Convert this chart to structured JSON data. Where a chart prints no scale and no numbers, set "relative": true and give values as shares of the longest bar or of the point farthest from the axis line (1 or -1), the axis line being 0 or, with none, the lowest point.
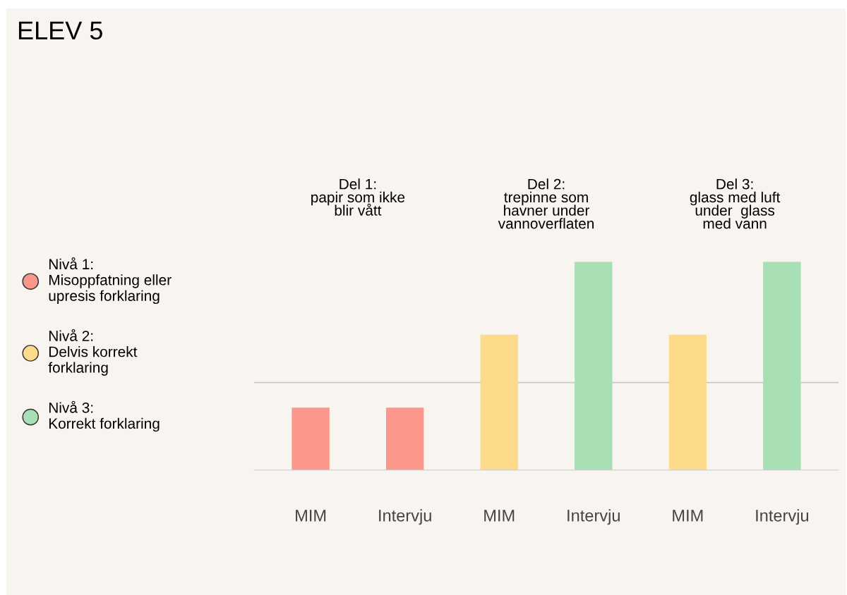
{
  "chart_data": {
    "type": "bar",
    "title": "ELEV 5",
    "relative": true,
    "categories": [
      "MIM",
      "Intervju",
      "MIM",
      "Intervju",
      "MIM",
      "Intervju"
    ],
    "series": [
      {
        "name": "Nivå 1:\nMisoppfatning eller\nupresis forklaring",
        "color": "#fa968a",
        "values": [
          0.3,
          0.3,
          null,
          null,
          null,
          null
        ]
      },
      {
        "name": "Nivå 2:\nDelvis korrekt\nforklaring",
        "color": "#fedb8b",
        "values": [
          null,
          null,
          0.65,
          null,
          0.65,
          null
        ]
      },
      {
        "name": "Nivå 3:\nKorrekt forklaring",
        "color": "#a8dfb5",
        "values": [
          null,
          null,
          null,
          1,
          null,
          1
        ]
      }
    ],
    "annotations": [
      "Del 1:\npapir som ikke\nblir vått",
      "Del 2:\ntrepinne som\nhavner under\nvannoverflaten",
      "Del 3:\nglass med luft\nunder  glass\nmed vann"
    ],
    "ref_lines": [
      {
        "axis": "y",
        "value": 0.42,
        "color": "#c8c8c8"
      }
    ],
    "grid": false,
    "legend": "left"
  }
}
